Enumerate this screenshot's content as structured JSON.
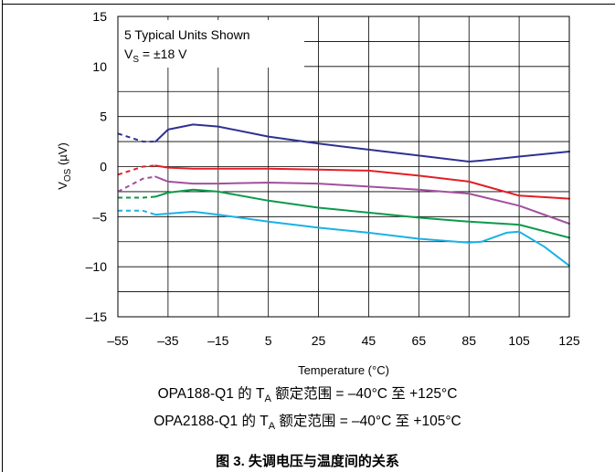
{
  "notes": {
    "line1": {
      "prefix": "OPA188-Q1 的 T",
      "sub": "A",
      "suffix": " 额定范围 = –40°C 至 +125°C"
    },
    "line2": {
      "prefix": "OPA2188-Q1 的 T",
      "sub": "A",
      "suffix": " 额定范围 = –40°C 至 +105°C"
    }
  },
  "caption": "图 3. 失调电压与温度间的关系",
  "chart_data": {
    "type": "line",
    "xlabel": "Temperature (°C)",
    "ylabel": {
      "main": "V",
      "sub": "OS",
      "unit": " (µV)"
    },
    "x_ticks": [
      -55,
      -35,
      -15,
      5,
      25,
      45,
      65,
      85,
      105,
      125
    ],
    "y_ticks": [
      15,
      10,
      5,
      0,
      -5,
      -10,
      -15
    ],
    "y_tick_labels": [
      "15",
      "10",
      "5",
      "0",
      "–5",
      "–10",
      "–15"
    ],
    "xlim": [
      -55,
      125
    ],
    "ylim": [
      -15,
      15
    ],
    "grid": true,
    "legend_text": {
      "line1": "5 Typical Units Shown",
      "line2_main": "V",
      "line2_sub": "S",
      "line2_rest": " = ±18 V",
      "placement": "top-left"
    },
    "dashed_below_x": -40,
    "series": [
      {
        "color": "#2e3192",
        "x": [
          -55,
          -45,
          -40,
          -35,
          -25,
          -15,
          5,
          25,
          45,
          65,
          85,
          90,
          105,
          125
        ],
        "y": [
          3.3,
          2.5,
          2.5,
          3.7,
          4.2,
          4.0,
          3.0,
          2.3,
          1.7,
          1.1,
          0.5,
          0.6,
          1.0,
          1.5
        ]
      },
      {
        "color": "#e41e26",
        "x": [
          -55,
          -45,
          -40,
          -35,
          -25,
          -15,
          5,
          25,
          45,
          65,
          85,
          95,
          105,
          125
        ],
        "y": [
          -0.8,
          0.0,
          0.1,
          -0.1,
          -0.2,
          -0.2,
          -0.2,
          -0.3,
          -0.4,
          -0.9,
          -1.5,
          -2.2,
          -2.9,
          -3.2
        ]
      },
      {
        "color": "#a2509d",
        "x": [
          -55,
          -45,
          -40,
          -35,
          -25,
          -15,
          5,
          25,
          45,
          65,
          85,
          105,
          125
        ],
        "y": [
          -2.5,
          -1.2,
          -1.0,
          -1.5,
          -1.7,
          -1.7,
          -1.6,
          -1.7,
          -2.0,
          -2.3,
          -2.7,
          -3.9,
          -5.7
        ]
      },
      {
        "color": "#0b9a4a",
        "x": [
          -55,
          -45,
          -40,
          -35,
          -25,
          -15,
          5,
          25,
          45,
          65,
          85,
          105,
          125
        ],
        "y": [
          -3.1,
          -3.1,
          -3.0,
          -2.6,
          -2.3,
          -2.5,
          -3.4,
          -4.1,
          -4.6,
          -5.1,
          -5.5,
          -5.8,
          -7.1
        ]
      },
      {
        "color": "#1bb1e6",
        "x": [
          -55,
          -45,
          -40,
          -35,
          -25,
          -15,
          5,
          25,
          45,
          65,
          85,
          90,
          100,
          105,
          115,
          125
        ],
        "y": [
          -4.4,
          -4.4,
          -4.8,
          -4.7,
          -4.5,
          -4.8,
          -5.5,
          -6.1,
          -6.6,
          -7.2,
          -7.6,
          -7.5,
          -6.6,
          -6.5,
          -8.0,
          -9.9
        ]
      }
    ]
  }
}
